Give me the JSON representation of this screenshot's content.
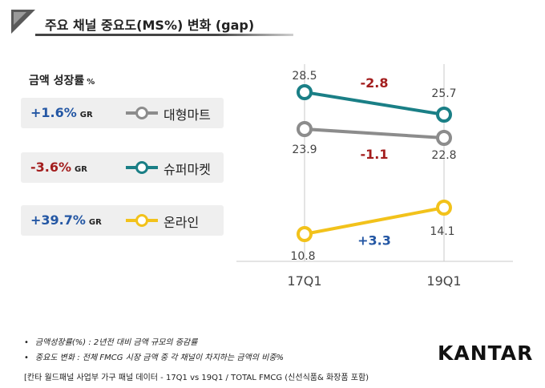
{
  "title": "주요 채널 중요도(MS%) 변화 (gap)",
  "section_label": "금액 성장률",
  "section_unit": "%",
  "growth_rows": [
    {
      "value": "+1.6%",
      "gr": "GR",
      "value_color": "#2457a4",
      "channel": "대형마트",
      "color": "#8c8c8c"
    },
    {
      "value": "-3.6%",
      "gr": "GR",
      "value_color": "#a31d1d",
      "channel": "슈퍼마켓",
      "color": "#1a7f86"
    },
    {
      "value": "+39.7%",
      "gr": "GR",
      "value_color": "#2457a4",
      "channel": "온라인",
      "color": "#f2c21b"
    }
  ],
  "chart_data": {
    "type": "line",
    "x": [
      "17Q1",
      "19Q1"
    ],
    "series": [
      {
        "name": "슈퍼마켓",
        "color": "#1a7f86",
        "values": [
          28.5,
          25.7
        ],
        "labels": [
          "28.5",
          "25.7"
        ],
        "gap": "-2.8",
        "gap_color": "#a31d1d"
      },
      {
        "name": "대형마트",
        "color": "#8c8c8c",
        "values": [
          23.9,
          22.8
        ],
        "labels": [
          "23.9",
          "22.8"
        ],
        "gap": "-1.1",
        "gap_color": "#a31d1d"
      },
      {
        "name": "온라인",
        "color": "#f2c21b",
        "values": [
          10.8,
          14.1
        ],
        "labels": [
          "10.8",
          "14.1"
        ],
        "gap": "+3.3",
        "gap_color": "#2457a4"
      }
    ],
    "ylim": [
      5,
      32
    ]
  },
  "footnotes": [
    "금액성장률(%) : 2년전 대비 금액 규모의 증감률",
    "중요도 변화 : 전체 FMCG 시장 금액 중 각 채널이 차지하는 금액의 비중%"
  ],
  "source": "[칸타 월드패널 사업부 가구 패널 데이터 - 17Q1 vs 19Q1 / TOTAL FMCG (신선식품& 화장품 포함)",
  "logo": "KANTAR"
}
